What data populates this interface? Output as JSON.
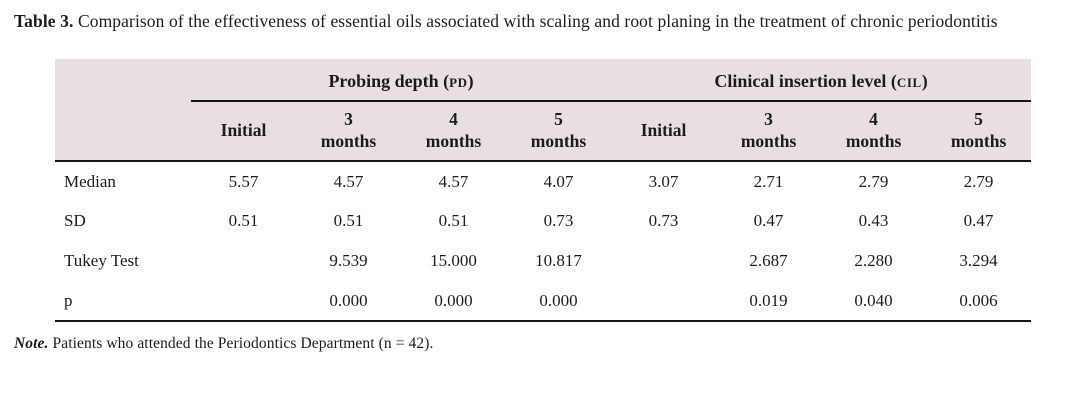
{
  "page": {
    "title_bold": "Table 3.",
    "title_rest": " Comparison of the effectiveness of essential oils associated with scaling and root planing in the treatment of chronic periodontitis",
    "note_bold": "Note.",
    "note_rest": " Patients who attended the Periodontics Department (n = 42)."
  },
  "table": {
    "group_headers": [
      {
        "prefix": "Probing depth (",
        "abbr": "PD",
        "suffix": ")"
      },
      {
        "prefix": "Clinical insertion level (",
        "abbr": "CIL",
        "suffix": ")"
      }
    ],
    "col_headers": [
      "Initial",
      "3\nmonths",
      "4\nmonths",
      "5\nmonths",
      "Initial",
      "3\nmonths",
      "4\nmonths",
      "5\nmonths"
    ],
    "rows": [
      {
        "label": "Median",
        "values": [
          "5.57",
          "4.57",
          "4.57",
          "4.07",
          "3.07",
          "2.71",
          "2.79",
          "2.79"
        ]
      },
      {
        "label": "SD",
        "values": [
          "0.51",
          "0.51",
          "0.51",
          "0.73",
          "0.73",
          "0.47",
          "0.43",
          "0.47"
        ]
      },
      {
        "label": "Tukey Test",
        "values": [
          "",
          "9.539",
          "15.000",
          "10.817",
          "",
          "2.687",
          "2.280",
          "3.294"
        ]
      },
      {
        "label": "p",
        "values": [
          "",
          "0.000",
          "0.000",
          "0.000",
          "",
          "0.019",
          "0.040",
          "0.006"
        ]
      }
    ]
  },
  "colors": {
    "header_bg": "#e8dfe4",
    "rule_color": "#161616",
    "text_color": "#1c1c1c"
  }
}
